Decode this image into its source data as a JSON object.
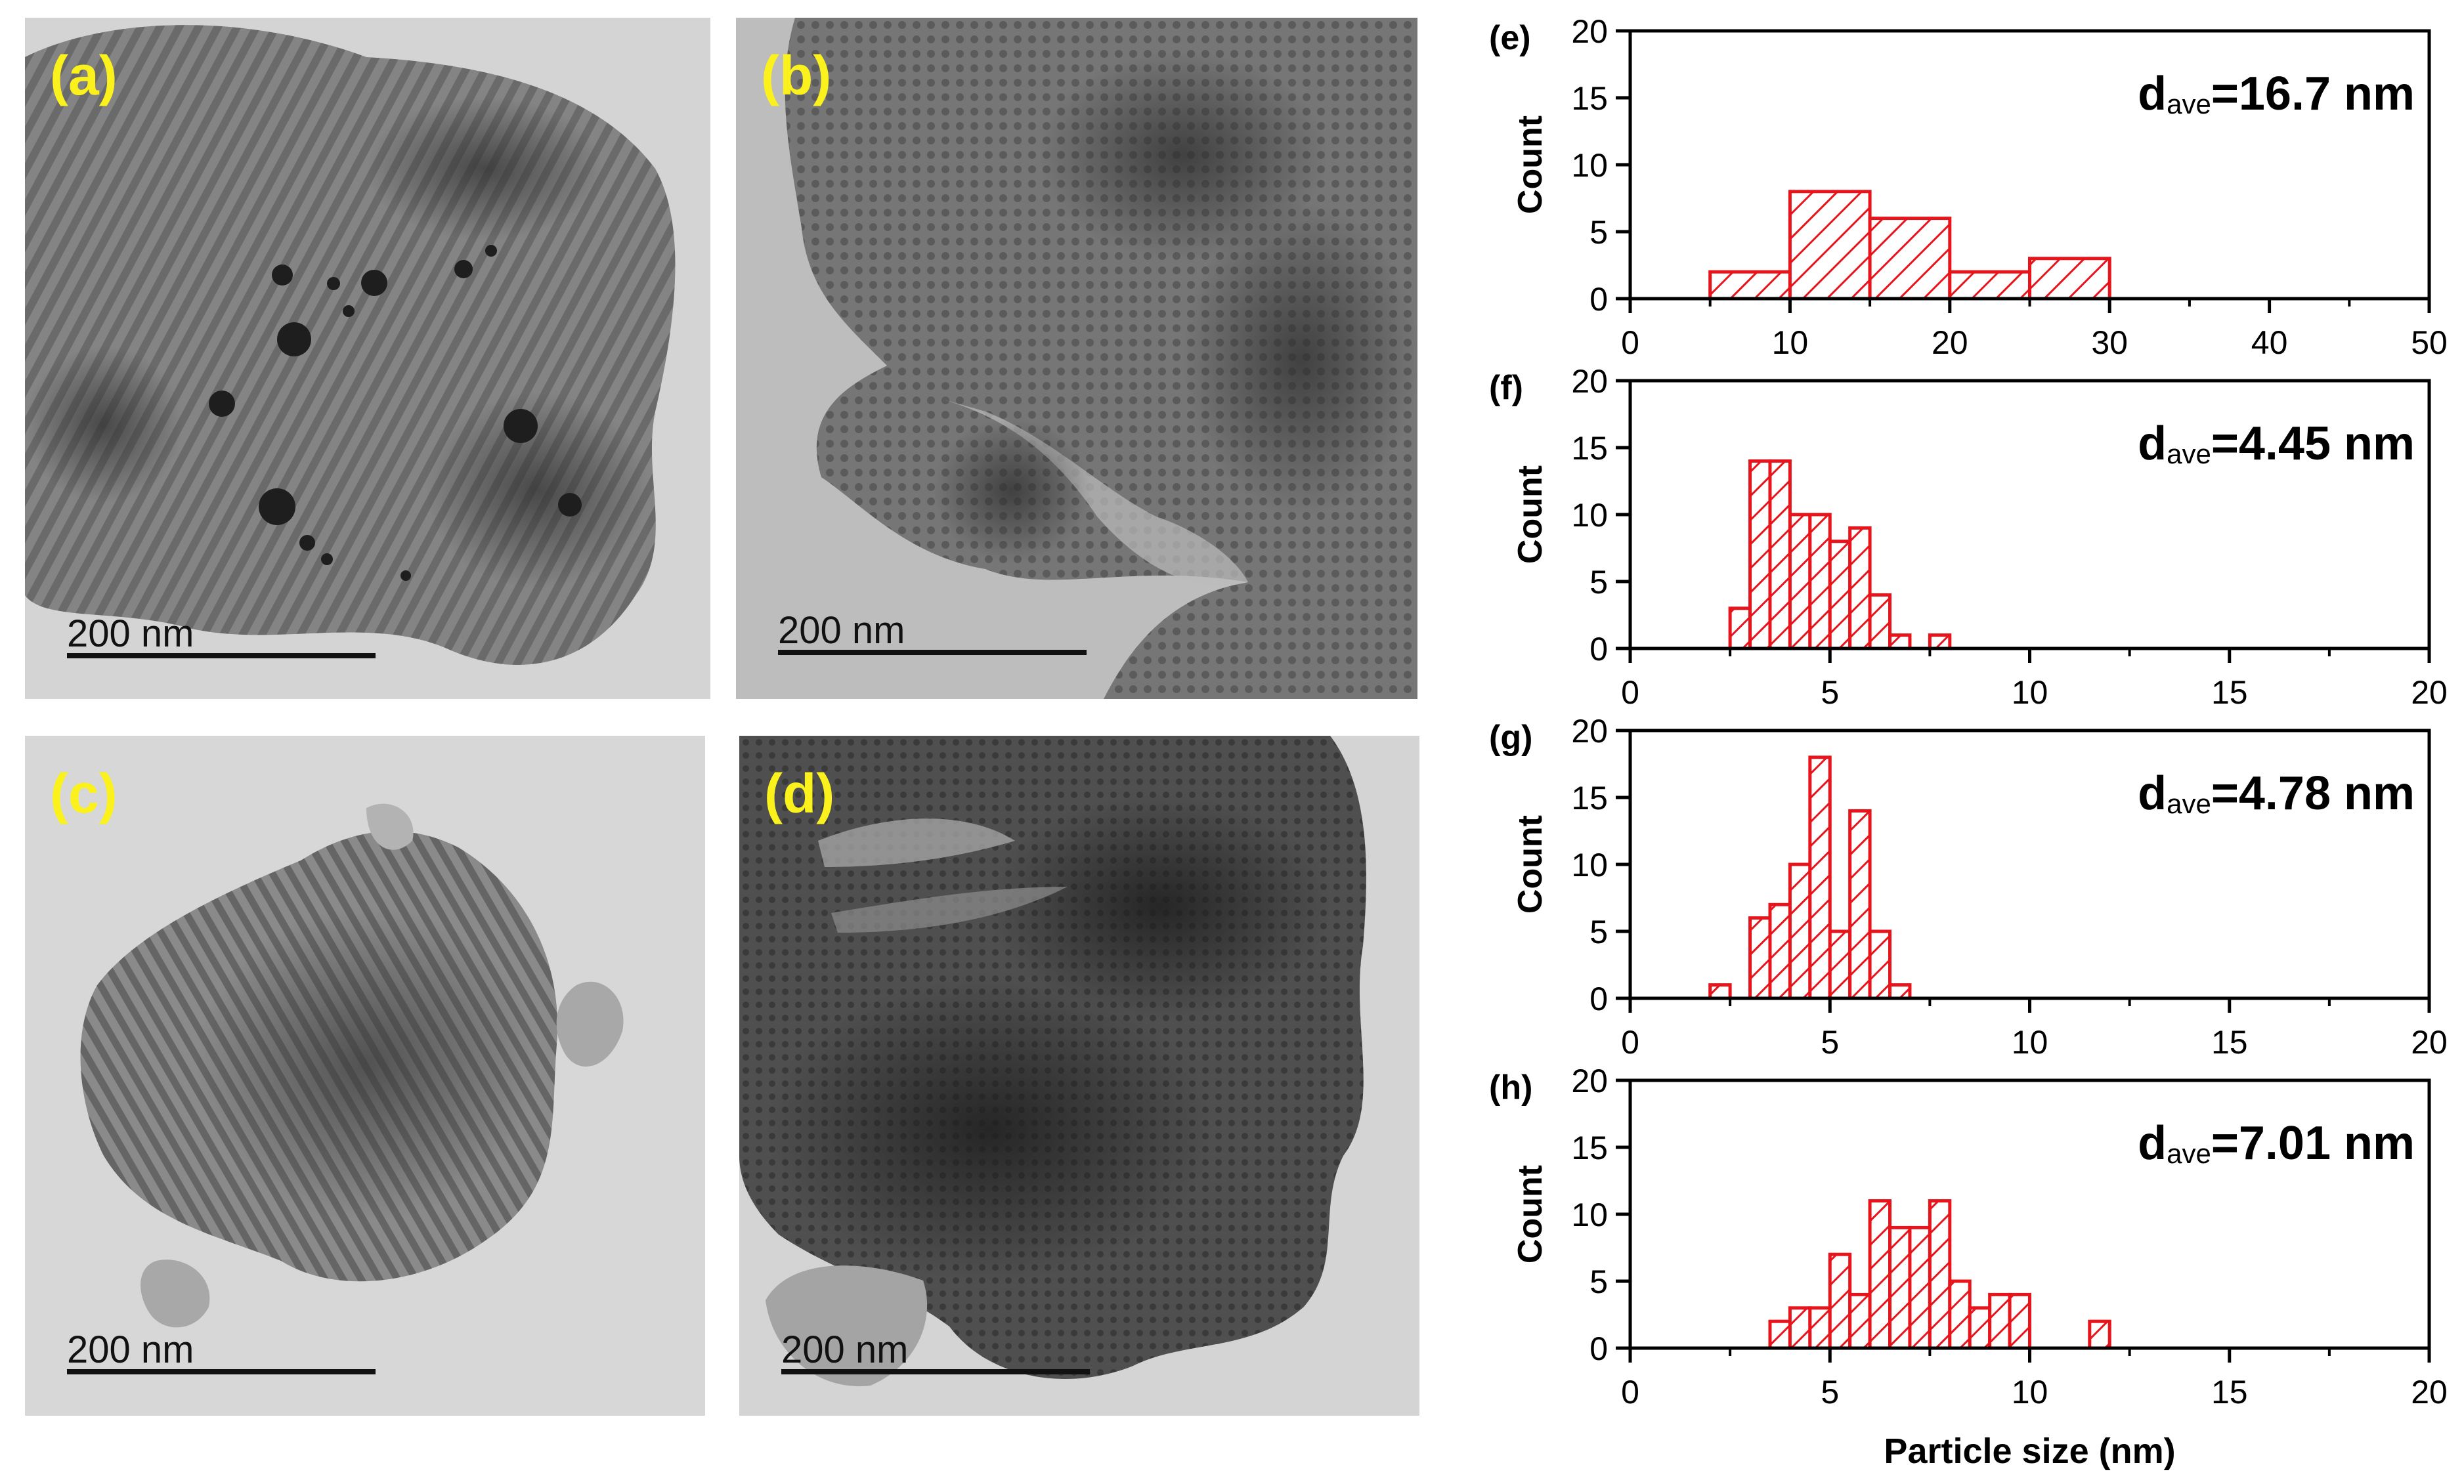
{
  "panels": [
    {
      "label": "(a)",
      "scale_text": "200 nm"
    },
    {
      "label": "(b)",
      "scale_text": "200 nm"
    },
    {
      "label": "(c)",
      "scale_text": "200 nm"
    },
    {
      "label": "(d)",
      "scale_text": "200 nm"
    }
  ],
  "colors": {
    "bar": "#e8141c",
    "label": "#fbf21d"
  },
  "chart_data": [
    {
      "type": "bar",
      "panel_label": "(e)",
      "annotation": "d",
      "annotation_sub": "ave",
      "annotation_value": "=16.7 nm",
      "xlabel": "",
      "ylabel": "Count",
      "xlim": [
        0,
        50
      ],
      "ylim": [
        0,
        20
      ],
      "xticks": [
        0,
        10,
        20,
        30,
        40,
        50
      ],
      "yticks": [
        0,
        5,
        10,
        15,
        20
      ],
      "bin_width": 5,
      "bins": [
        {
          "x": 5,
          "y": 2
        },
        {
          "x": 10,
          "y": 8
        },
        {
          "x": 15,
          "y": 6
        },
        {
          "x": 20,
          "y": 2
        },
        {
          "x": 25,
          "y": 3
        }
      ]
    },
    {
      "type": "bar",
      "panel_label": "(f)",
      "annotation": "d",
      "annotation_sub": "ave",
      "annotation_value": "=4.45 nm",
      "xlabel": "",
      "ylabel": "Count",
      "xlim": [
        0,
        20
      ],
      "ylim": [
        0,
        20
      ],
      "xticks": [
        0,
        5,
        10,
        15,
        20
      ],
      "yticks": [
        0,
        5,
        10,
        15,
        20
      ],
      "bin_width": 0.5,
      "bins": [
        {
          "x": 2.5,
          "y": 3
        },
        {
          "x": 3,
          "y": 14
        },
        {
          "x": 3.5,
          "y": 14
        },
        {
          "x": 4,
          "y": 10
        },
        {
          "x": 4.5,
          "y": 10
        },
        {
          "x": 5,
          "y": 8
        },
        {
          "x": 5.5,
          "y": 9
        },
        {
          "x": 6,
          "y": 4
        },
        {
          "x": 6.5,
          "y": 1
        },
        {
          "x": 7.5,
          "y": 1
        }
      ]
    },
    {
      "type": "bar",
      "panel_label": "(g)",
      "annotation": "d",
      "annotation_sub": "ave",
      "annotation_value": "=4.78 nm",
      "xlabel": "",
      "ylabel": "Count",
      "xlim": [
        0,
        20
      ],
      "ylim": [
        0,
        20
      ],
      "xticks": [
        0,
        5,
        10,
        15,
        20
      ],
      "yticks": [
        0,
        5,
        10,
        15,
        20
      ],
      "bin_width": 0.5,
      "bins": [
        {
          "x": 2,
          "y": 1
        },
        {
          "x": 3,
          "y": 6
        },
        {
          "x": 3.5,
          "y": 7
        },
        {
          "x": 4,
          "y": 10
        },
        {
          "x": 4.5,
          "y": 18
        },
        {
          "x": 5,
          "y": 5
        },
        {
          "x": 5.5,
          "y": 14
        },
        {
          "x": 6,
          "y": 5
        },
        {
          "x": 6.5,
          "y": 1
        }
      ]
    },
    {
      "type": "bar",
      "panel_label": "(h)",
      "annotation": "d",
      "annotation_sub": "ave",
      "annotation_value": "=7.01 nm",
      "xlabel": "Particle size (nm)",
      "ylabel": "Count",
      "xlim": [
        0,
        20
      ],
      "ylim": [
        0,
        20
      ],
      "xticks": [
        0,
        5,
        10,
        15,
        20
      ],
      "yticks": [
        0,
        5,
        10,
        15,
        20
      ],
      "bin_width": 0.5,
      "bins": [
        {
          "x": 3.5,
          "y": 2
        },
        {
          "x": 4,
          "y": 3
        },
        {
          "x": 4.5,
          "y": 3
        },
        {
          "x": 5,
          "y": 7
        },
        {
          "x": 5.5,
          "y": 4
        },
        {
          "x": 6,
          "y": 11
        },
        {
          "x": 6.5,
          "y": 9
        },
        {
          "x": 7,
          "y": 9
        },
        {
          "x": 7.5,
          "y": 11
        },
        {
          "x": 8,
          "y": 5
        },
        {
          "x": 8.5,
          "y": 3
        },
        {
          "x": 9,
          "y": 4
        },
        {
          "x": 9.5,
          "y": 4
        },
        {
          "x": 11.5,
          "y": 2
        }
      ]
    }
  ]
}
